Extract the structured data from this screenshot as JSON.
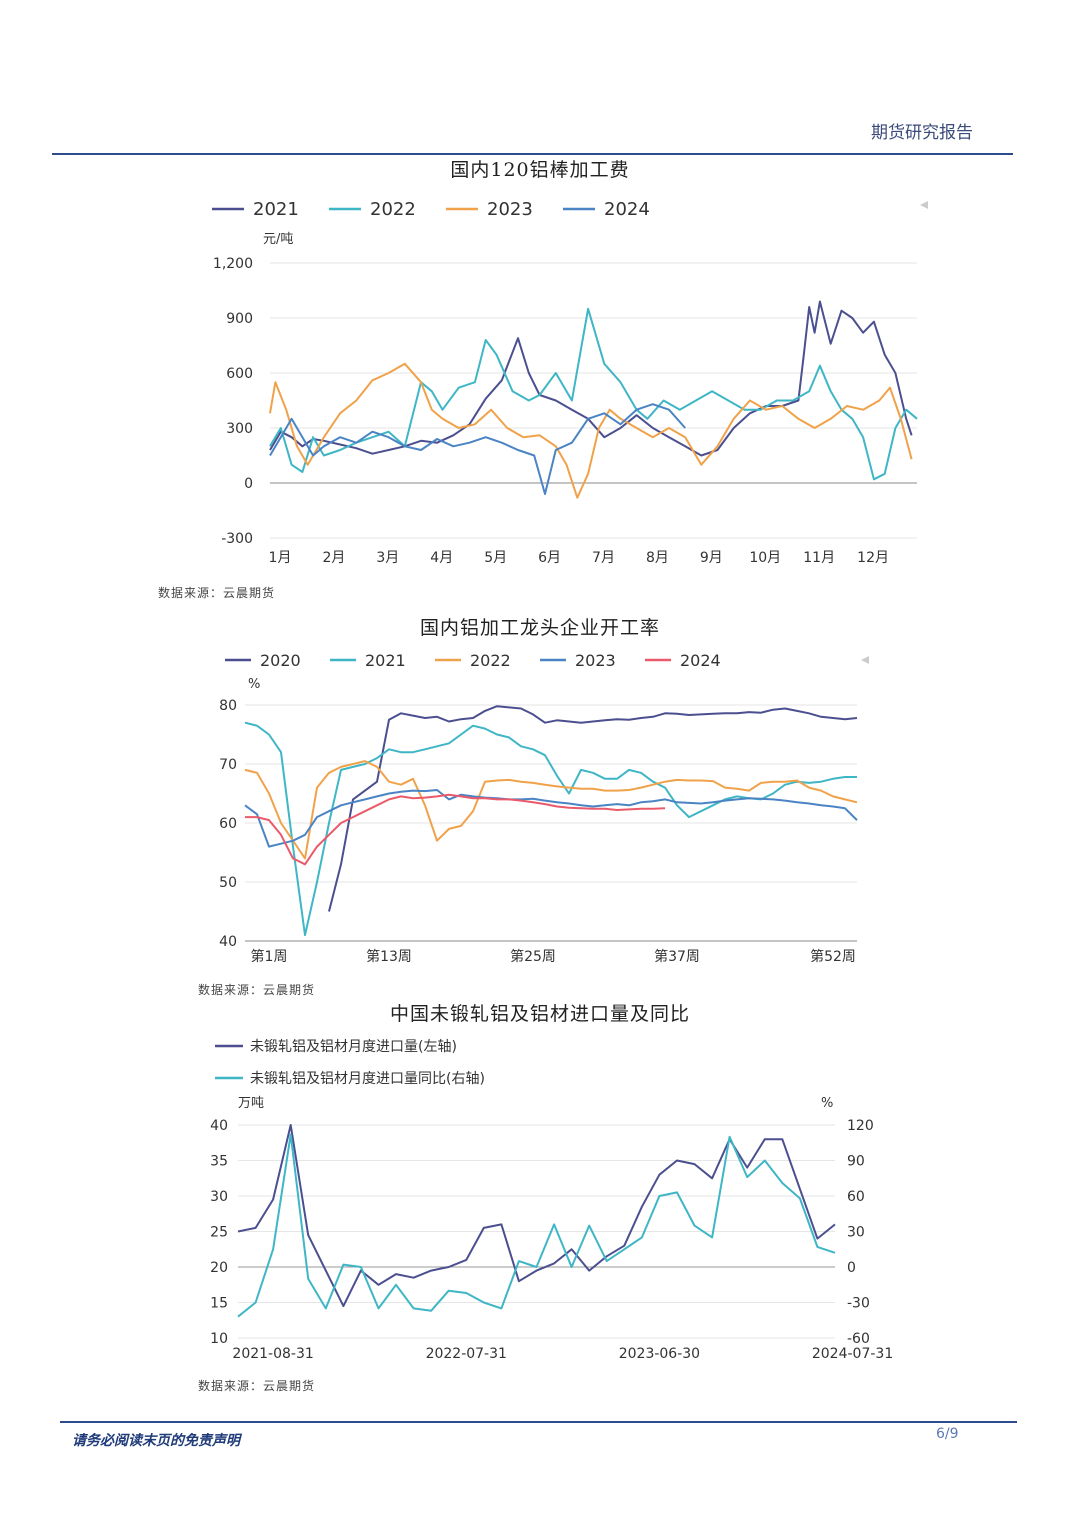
{
  "header": {
    "title": "期货研究报告"
  },
  "footer": {
    "disclaimer": "请务必阅读末页的免责声明",
    "page": "6/9"
  },
  "charts_meta": [
    {
      "title": "国内120铝棒加工费",
      "source": "数据来源：云晨期货"
    },
    {
      "title": "国内铝加工龙头企业开工率",
      "source": "数据来源：云晨期货"
    },
    {
      "title": "中国未锻轧铝及铝材进口量及同比",
      "source": "数据来源：云晨期货"
    }
  ],
  "colors": {
    "navy": "#4b4f8f",
    "teal": "#3fb6c6",
    "orange": "#f0a24a",
    "blue": "#4a84c4",
    "red": "#ea5a6a"
  },
  "chart_data": [
    {
      "type": "line",
      "title": "国内120铝棒加工费",
      "ylabel": "元/吨",
      "ylim": [
        -300,
        1200
      ],
      "yticks": [
        "-300",
        "0",
        "300",
        "600",
        "900",
        "1,200"
      ],
      "xlim": [
        1,
        13
      ],
      "xticks": [
        "1月",
        "2月",
        "3月",
        "4月",
        "5月",
        "6月",
        "7月",
        "8月",
        "9月",
        "10月",
        "11月",
        "12月"
      ],
      "legend_position": "top",
      "series": [
        {
          "name": "2021",
          "color": "#4b4f8f",
          "x": [
            1.0,
            1.2,
            1.4,
            1.6,
            1.8,
            2.0,
            2.3,
            2.6,
            2.9,
            3.2,
            3.5,
            3.8,
            4.1,
            4.4,
            4.7,
            5.0,
            5.3,
            5.6,
            5.8,
            6.0,
            6.3,
            6.6,
            6.9,
            7.2,
            7.5,
            7.8,
            8.1,
            8.4,
            8.7,
            9.0,
            9.3,
            9.6,
            9.9,
            10.2,
            10.5,
            10.8,
            10.9,
            11.0,
            11.1,
            11.2,
            11.4,
            11.6,
            11.8,
            12.0,
            12.2,
            12.4,
            12.6,
            12.8,
            12.9
          ],
          "y": [
            180,
            280,
            250,
            200,
            240,
            230,
            210,
            190,
            160,
            180,
            200,
            230,
            220,
            260,
            320,
            460,
            560,
            790,
            600,
            480,
            450,
            400,
            350,
            250,
            300,
            370,
            300,
            250,
            200,
            150,
            180,
            300,
            380,
            420,
            420,
            450,
            700,
            960,
            820,
            990,
            760,
            940,
            900,
            820,
            880,
            700,
            600,
            350,
            260
          ]
        },
        {
          "name": "2022",
          "color": "#3fb6c6",
          "x": [
            1.0,
            1.2,
            1.4,
            1.6,
            1.8,
            2.0,
            2.3,
            2.6,
            2.9,
            3.2,
            3.5,
            3.8,
            4.0,
            4.2,
            4.5,
            4.8,
            5.0,
            5.2,
            5.5,
            5.8,
            6.0,
            6.3,
            6.6,
            6.9,
            7.2,
            7.5,
            7.8,
            8.0,
            8.3,
            8.6,
            8.9,
            9.2,
            9.5,
            9.8,
            10.1,
            10.4,
            10.7,
            11.0,
            11.2,
            11.4,
            11.6,
            11.8,
            12.0,
            12.2,
            12.4,
            12.6,
            12.8,
            13.0
          ],
          "y": [
            200,
            300,
            100,
            60,
            250,
            150,
            180,
            220,
            250,
            280,
            200,
            550,
            500,
            400,
            520,
            550,
            780,
            700,
            500,
            450,
            480,
            600,
            450,
            950,
            650,
            550,
            400,
            350,
            450,
            400,
            450,
            500,
            450,
            400,
            400,
            450,
            450,
            500,
            640,
            500,
            400,
            350,
            250,
            20,
            50,
            300,
            400,
            350
          ]
        },
        {
          "name": "2023",
          "color": "#f0a24a",
          "x": [
            1.0,
            1.1,
            1.3,
            1.5,
            1.7,
            2.0,
            2.3,
            2.6,
            2.9,
            3.2,
            3.5,
            3.8,
            4.0,
            4.2,
            4.5,
            4.8,
            5.1,
            5.4,
            5.7,
            6.0,
            6.3,
            6.5,
            6.7,
            6.9,
            7.1,
            7.3,
            7.5,
            7.8,
            8.1,
            8.4,
            8.7,
            9.0,
            9.3,
            9.6,
            9.9,
            10.2,
            10.5,
            10.8,
            11.1,
            11.4,
            11.7,
            12.0,
            12.3,
            12.5,
            12.7,
            12.9
          ],
          "y": [
            380,
            550,
            400,
            200,
            100,
            250,
            380,
            450,
            560,
            600,
            650,
            550,
            400,
            350,
            300,
            320,
            400,
            300,
            250,
            260,
            200,
            100,
            -80,
            50,
            300,
            400,
            350,
            300,
            250,
            300,
            250,
            100,
            200,
            350,
            450,
            400,
            420,
            350,
            300,
            350,
            420,
            400,
            450,
            520,
            350,
            130
          ]
        },
        {
          "name": "2024",
          "color": "#4a84c4",
          "x": [
            1.0,
            1.2,
            1.4,
            1.6,
            1.8,
            2.0,
            2.3,
            2.6,
            2.9,
            3.2,
            3.5,
            3.8,
            4.1,
            4.4,
            4.7,
            5.0,
            5.3,
            5.6,
            5.9,
            6.1,
            6.3,
            6.6,
            6.9,
            7.2,
            7.5,
            7.8,
            8.1,
            8.4,
            8.7
          ],
          "y": [
            150,
            250,
            350,
            250,
            150,
            200,
            250,
            220,
            280,
            250,
            200,
            180,
            240,
            200,
            220,
            250,
            220,
            180,
            150,
            -60,
            180,
            220,
            350,
            380,
            320,
            400,
            430,
            400,
            300
          ]
        }
      ]
    },
    {
      "type": "line",
      "title": "国内铝加工龙头企业开工率",
      "ylabel": "%",
      "ylim": [
        40,
        80
      ],
      "yticks": [
        "40",
        "50",
        "60",
        "70",
        "80"
      ],
      "xlim": [
        1,
        52
      ],
      "xticks": [
        {
          "label": "第1周",
          "week": 3
        },
        {
          "label": "第13周",
          "week": 13
        },
        {
          "label": "第25周",
          "week": 25
        },
        {
          "label": "第37周",
          "week": 37
        },
        {
          "label": "第52周",
          "week": 50
        }
      ],
      "legend_position": "top",
      "series": [
        {
          "name": "2020",
          "color": "#4b4f8f",
          "x": [
            8,
            9,
            10,
            11,
            12,
            13,
            14,
            15,
            16,
            17,
            18,
            19,
            20,
            21,
            22,
            23,
            24,
            25,
            26,
            27,
            28,
            29,
            30,
            31,
            32,
            33,
            34,
            35,
            36,
            37,
            38,
            39,
            40,
            41,
            42,
            43,
            44,
            45,
            46,
            47,
            48,
            49,
            50,
            51,
            52
          ],
          "y": [
            45,
            53,
            64,
            65.5,
            67,
            77.5,
            78.6,
            78.2,
            77.8,
            78,
            77.2,
            77.6,
            77.8,
            79,
            79.8,
            79.6,
            79.4,
            78.4,
            77,
            77.4,
            77.2,
            77,
            77.2,
            77.4,
            77.6,
            77.5,
            77.8,
            78,
            78.6,
            78.5,
            78.3,
            78.4,
            78.5,
            78.6,
            78.6,
            78.8,
            78.7,
            79.2,
            79.4,
            79,
            78.6,
            78,
            77.8,
            77.6,
            77.8
          ]
        },
        {
          "name": "2021",
          "color": "#3fb6c6",
          "x": [
            1,
            2,
            3,
            4,
            5,
            6,
            7,
            8,
            9,
            10,
            11,
            12,
            13,
            14,
            15,
            16,
            17,
            18,
            19,
            20,
            21,
            22,
            23,
            24,
            25,
            26,
            27,
            28,
            29,
            30,
            31,
            32,
            33,
            34,
            35,
            36,
            37,
            38,
            39,
            40,
            41,
            42,
            43,
            44,
            45,
            46,
            47,
            48,
            49,
            50,
            51,
            52
          ],
          "y": [
            77,
            76.5,
            75,
            72,
            56,
            41,
            50,
            60,
            69,
            69.5,
            70,
            71,
            72.5,
            72,
            72,
            72.5,
            73,
            73.5,
            75,
            76.5,
            76,
            75,
            74.5,
            73,
            72.5,
            71.5,
            68,
            65,
            69,
            68.5,
            67.5,
            67.5,
            69,
            68.5,
            67,
            66,
            63,
            61,
            62,
            63,
            64,
            64.5,
            64.2,
            64,
            65,
            66.5,
            67,
            66.8,
            67,
            67.5,
            67.8,
            67.8
          ]
        },
        {
          "name": "2022",
          "color": "#f0a24a",
          "x": [
            1,
            2,
            3,
            4,
            5,
            6,
            7,
            8,
            9,
            10,
            11,
            12,
            13,
            14,
            15,
            16,
            17,
            18,
            19,
            20,
            21,
            22,
            23,
            24,
            25,
            26,
            27,
            28,
            29,
            30,
            31,
            32,
            33,
            34,
            35,
            36,
            37,
            38,
            39,
            40,
            41,
            42,
            43,
            44,
            45,
            46,
            47,
            48,
            49,
            50,
            51,
            52
          ],
          "y": [
            69,
            68.5,
            65,
            60,
            57,
            54,
            66,
            68.5,
            69.5,
            70,
            70.5,
            69.5,
            67,
            66.5,
            67.5,
            63,
            57,
            59,
            59.5,
            62,
            67,
            67.2,
            67.3,
            67,
            66.8,
            66.5,
            66.2,
            66,
            65.8,
            65.8,
            65.5,
            65.5,
            65.6,
            66,
            66.5,
            67,
            67.3,
            67.2,
            67.2,
            67.1,
            66,
            65.8,
            65.5,
            66.8,
            67,
            67,
            67.2,
            66,
            65.5,
            64.5,
            64,
            63.5
          ]
        },
        {
          "name": "2023",
          "color": "#4a84c4",
          "x": [
            1,
            2,
            3,
            4,
            5,
            6,
            7,
            8,
            9,
            10,
            11,
            12,
            13,
            14,
            15,
            16,
            17,
            18,
            19,
            20,
            21,
            22,
            23,
            24,
            25,
            26,
            27,
            28,
            29,
            30,
            31,
            32,
            33,
            34,
            35,
            36,
            37,
            38,
            39,
            40,
            41,
            42,
            43,
            44,
            45,
            46,
            47,
            48,
            49,
            50,
            51,
            52
          ],
          "y": [
            63,
            61.5,
            56,
            56.5,
            57,
            58,
            61,
            62,
            63,
            63.5,
            64,
            64.5,
            65,
            65.3,
            65.5,
            65.4,
            65.6,
            64,
            64.8,
            64.5,
            64.3,
            64.2,
            64,
            64,
            64.1,
            63.8,
            63.5,
            63.3,
            63,
            62.8,
            63,
            63.2,
            63,
            63.5,
            63.7,
            64,
            63.5,
            63.4,
            63.3,
            63.5,
            63.8,
            64,
            64.2,
            64.1,
            64,
            63.8,
            63.5,
            63.3,
            63,
            62.8,
            62.5,
            60.5
          ]
        },
        {
          "name": "2024",
          "color": "#ea5a6a",
          "x": [
            1,
            2,
            3,
            4,
            5,
            6,
            7,
            8,
            9,
            10,
            11,
            12,
            13,
            14,
            15,
            16,
            17,
            18,
            19,
            20,
            21,
            22,
            23,
            24,
            25,
            26,
            27,
            28,
            29,
            30,
            31,
            32,
            33,
            34,
            35,
            36
          ],
          "y": [
            61,
            61,
            60.5,
            58,
            54,
            53,
            56,
            58,
            60,
            61,
            62,
            63,
            64,
            64.5,
            64.2,
            64.3,
            64.5,
            64.8,
            64.5,
            64.2,
            64.2,
            64,
            64,
            63.8,
            63.5,
            63.2,
            62.8,
            62.6,
            62.5,
            62.4,
            62.4,
            62.2,
            62.3,
            62.4,
            62.4,
            62.5
          ]
        }
      ]
    },
    {
      "type": "line",
      "title": "中国未锻轧铝及铝材进口量及同比",
      "ylabel_left": "万吨",
      "ylabel_right": "%",
      "ylim_left": [
        10,
        40
      ],
      "ylim_right": [
        -60,
        120
      ],
      "yticks_left": [
        "10",
        "15",
        "20",
        "25",
        "30",
        "35",
        "40"
      ],
      "yticks_right": [
        "-60",
        "-30",
        "0",
        "30",
        "60",
        "90",
        "120"
      ],
      "xticks": [
        {
          "label": "2021-08-31",
          "index": 2
        },
        {
          "label": "2022-07-31",
          "index": 13
        },
        {
          "label": "2023-06-30",
          "index": 24
        },
        {
          "label": "2024-07-31",
          "index": 35
        }
      ],
      "legend_position": "top-left",
      "series": [
        {
          "name": "未锻轧铝及铝材月度进口量(左轴)",
          "axis": "left",
          "color": "#4b4f8f",
          "values": [
            25,
            25.5,
            29.5,
            40,
            24.5,
            19.5,
            14.5,
            19.5,
            17.5,
            19,
            18.5,
            19.5,
            20,
            21,
            25.5,
            26,
            18,
            19.5,
            20.5,
            22.5,
            19.5,
            21.5,
            23,
            28.5,
            33,
            35,
            34.5,
            32.5,
            38,
            34,
            38,
            38,
            31,
            24,
            26
          ]
        },
        {
          "name": "未锻轧铝及铝材月度进口量同比(右轴)",
          "axis": "right",
          "color": "#3fb6c6",
          "values": [
            -42,
            -30,
            15,
            112,
            -10,
            -35,
            2,
            0,
            -35,
            -15,
            -35,
            -37,
            -20,
            -22,
            -30,
            -35,
            5,
            0,
            36,
            0,
            35,
            5,
            15,
            25,
            60,
            63,
            35,
            25,
            110,
            76,
            90,
            71,
            58,
            17,
            12
          ]
        }
      ]
    }
  ]
}
